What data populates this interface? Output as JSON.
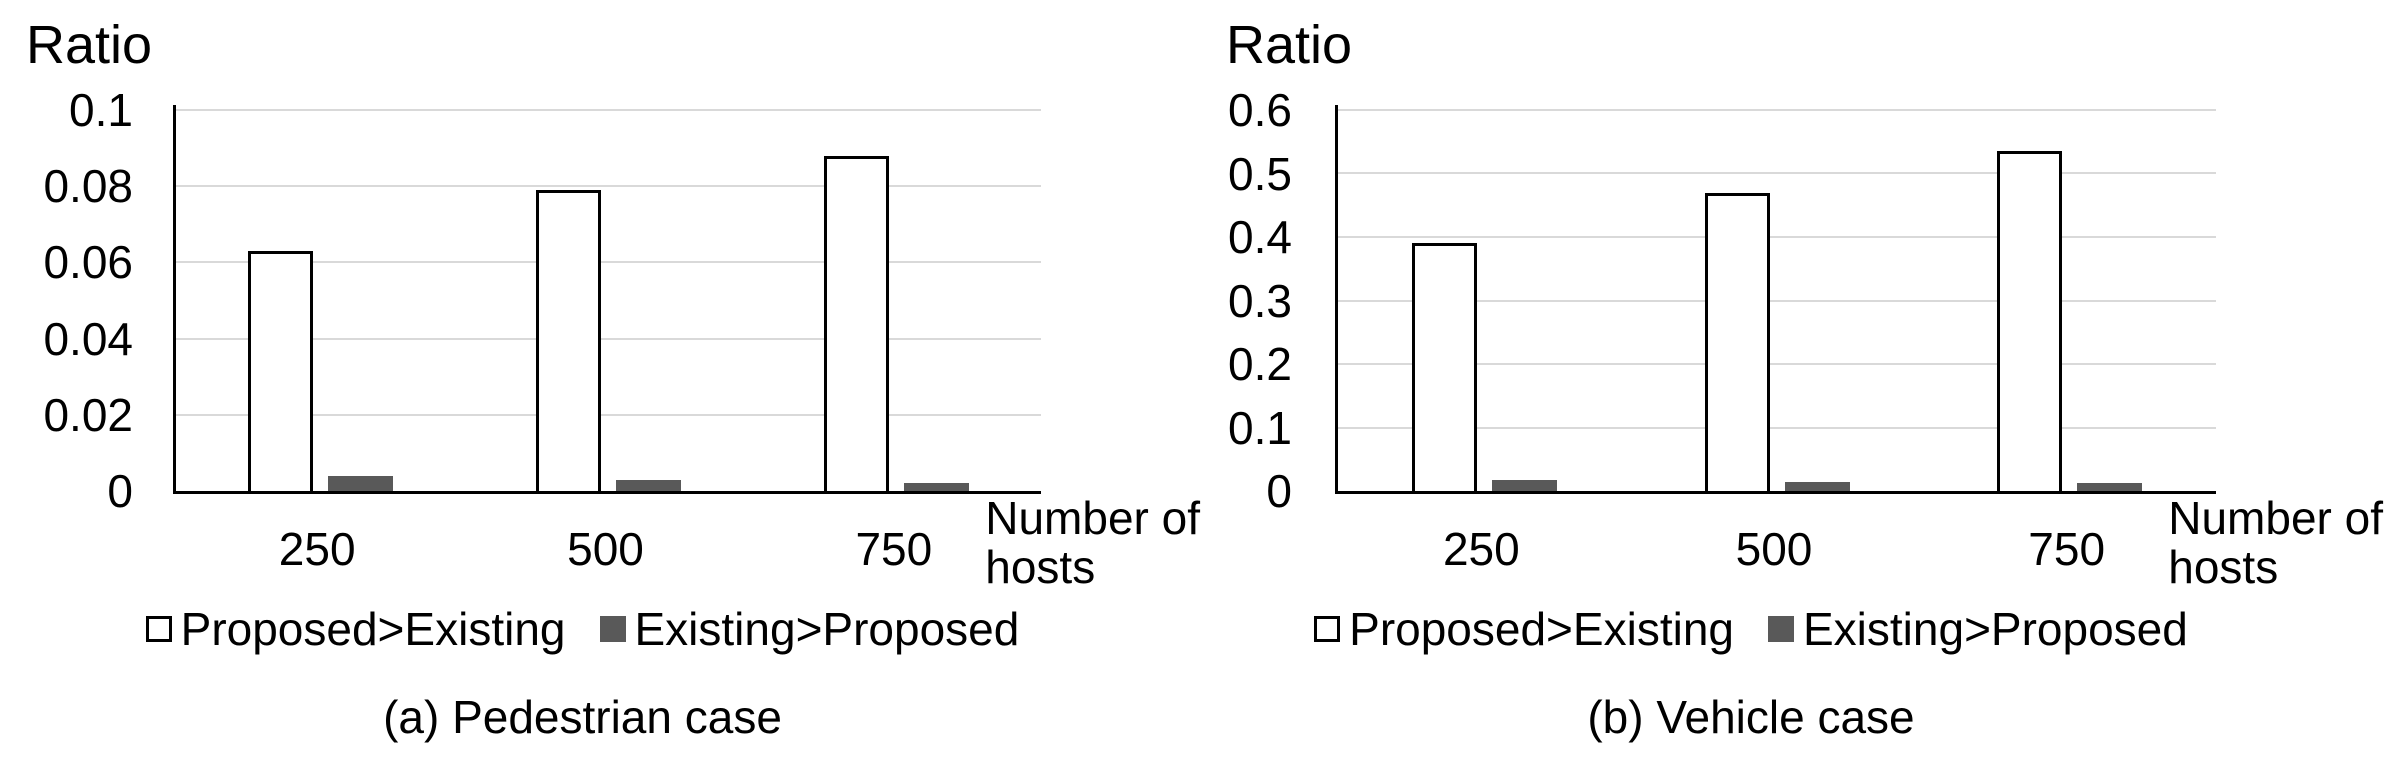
{
  "colors": {
    "background": "#ffffff",
    "axis": "#000000",
    "gridline": "#d9d9d9",
    "text": "#000000",
    "bar_outline": "#000000",
    "bar_white_fill": "#ffffff",
    "bar_gray_fill": "#595959"
  },
  "chart_data": [
    {
      "type": "bar",
      "title": "(a) Pedestrian case",
      "ylabel": "Ratio",
      "xlabel": "Number of hosts",
      "xlabel_lines": [
        "Number of",
        "hosts"
      ],
      "categories": [
        "250",
        "500",
        "750"
      ],
      "ylim": [
        0,
        0.1
      ],
      "grid": true,
      "legend_position": "bottom",
      "y_ticks": [
        {
          "label": "0.1",
          "value": 0.1
        },
        {
          "label": "0.08",
          "value": 0.08
        },
        {
          "label": "0.06",
          "value": 0.06
        },
        {
          "label": "0.04",
          "value": 0.04
        },
        {
          "label": "0.02",
          "value": 0.02
        },
        {
          "label": "0",
          "value": 0
        }
      ],
      "series": [
        {
          "name": "Proposed>Existing",
          "values": [
            0.063,
            0.079,
            0.088
          ],
          "fill": "#ffffff",
          "border": "#000000",
          "marker": "outlined"
        },
        {
          "name": "Existing>Proposed",
          "values": [
            0.004,
            0.003,
            0.002
          ],
          "fill": "#595959",
          "border": "#595959",
          "marker": "filled"
        }
      ]
    },
    {
      "type": "bar",
      "title": "(b) Vehicle case",
      "ylabel": "Ratio",
      "xlabel": "Number of hosts",
      "xlabel_lines": [
        "Number of",
        "hosts"
      ],
      "categories": [
        "250",
        "500",
        "750"
      ],
      "ylim": [
        0,
        0.6
      ],
      "grid": true,
      "legend_position": "bottom",
      "y_ticks": [
        {
          "label": "0.6",
          "value": 0.6
        },
        {
          "label": "0.5",
          "value": 0.5
        },
        {
          "label": "0.4",
          "value": 0.4
        },
        {
          "label": "0.3",
          "value": 0.3
        },
        {
          "label": "0.2",
          "value": 0.2
        },
        {
          "label": "0.1",
          "value": 0.1
        },
        {
          "label": "0",
          "value": 0
        }
      ],
      "series": [
        {
          "name": "Proposed>Existing",
          "values": [
            0.39,
            0.47,
            0.535
          ],
          "fill": "#ffffff",
          "border": "#000000",
          "marker": "outlined"
        },
        {
          "name": "Existing>Proposed",
          "values": [
            0.018,
            0.014,
            0.012
          ],
          "fill": "#595959",
          "border": "#595959",
          "marker": "filled"
        }
      ]
    }
  ]
}
